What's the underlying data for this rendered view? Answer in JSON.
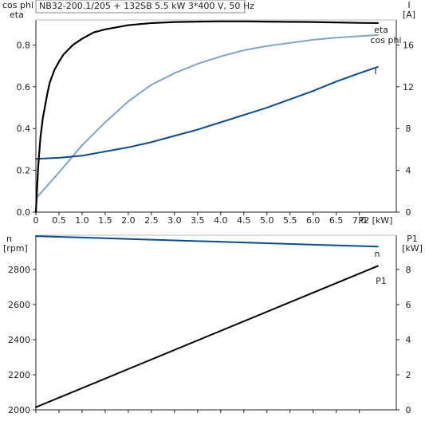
{
  "title": "NB32-200.1/205 + 132SB   5.5 kW   3*400 V, 50 Hz",
  "colors": {
    "eta": "#000000",
    "cos_phi": "#7fa4c6",
    "current": "#0e4a85",
    "speed": "#0e4a85",
    "p1": "#000000",
    "axis": "#222222"
  },
  "chart_data": [
    {
      "type": "line",
      "x_label": "P2 [kW]",
      "x_ticks": [
        "0",
        "0.5",
        "1.0",
        "1.5",
        "2.0",
        "2.5",
        "3.0",
        "3.5",
        "4.0",
        "4.5",
        "5.0",
        "5.5",
        "6.0",
        "6.5",
        "7.0"
      ],
      "xlim": [
        0,
        7.8
      ],
      "y_left_label_1": "cos phi",
      "y_left_label_2": "eta",
      "y_left_ticks": [
        "0.0",
        "0.2",
        "0.4",
        "0.6",
        "0.8"
      ],
      "y_left_lim": [
        0,
        0.92
      ],
      "y_right_label_1": "I",
      "y_right_label_2": "[A]",
      "y_right_ticks": [
        "0",
        "4",
        "8",
        "12",
        "16"
      ],
      "y_right_lim": [
        0,
        18.4
      ],
      "grid": false,
      "series": [
        {
          "name": "eta",
          "axis": "left",
          "x": [
            0,
            0.05,
            0.1,
            0.15,
            0.2,
            0.25,
            0.3,
            0.4,
            0.5,
            0.6,
            0.8,
            1.0,
            1.25,
            1.5,
            2.0,
            2.5,
            3.0,
            3.5,
            4.0,
            4.5,
            5.0,
            5.5,
            6.0,
            6.5,
            7.0,
            7.4
          ],
          "y": [
            0,
            0.22,
            0.36,
            0.45,
            0.51,
            0.57,
            0.62,
            0.68,
            0.72,
            0.755,
            0.8,
            0.83,
            0.86,
            0.875,
            0.895,
            0.905,
            0.91,
            0.912,
            0.913,
            0.913,
            0.912,
            0.911,
            0.91,
            0.908,
            0.906,
            0.905
          ]
        },
        {
          "name": "cos phi",
          "axis": "left",
          "x": [
            0,
            0.5,
            1.0,
            1.5,
            2.0,
            2.5,
            3.0,
            3.5,
            4.0,
            4.5,
            5.0,
            5.5,
            6.0,
            6.5,
            7.0,
            7.4
          ],
          "y": [
            0.065,
            0.19,
            0.32,
            0.43,
            0.53,
            0.61,
            0.665,
            0.71,
            0.745,
            0.775,
            0.795,
            0.81,
            0.825,
            0.835,
            0.842,
            0.848
          ]
        },
        {
          "name": "I",
          "axis": "right",
          "x": [
            0,
            0.5,
            1.0,
            1.5,
            2.0,
            2.5,
            3.0,
            3.5,
            4.0,
            4.5,
            5.0,
            5.5,
            6.0,
            6.5,
            7.0,
            7.4
          ],
          "y": [
            5.1,
            5.2,
            5.4,
            5.8,
            6.2,
            6.7,
            7.3,
            7.9,
            8.6,
            9.3,
            10.0,
            10.8,
            11.6,
            12.5,
            13.3,
            13.9
          ]
        }
      ]
    },
    {
      "type": "line",
      "x_label": "P2 [kW]",
      "xlim": [
        0,
        7.8
      ],
      "y_left_label_1": "n",
      "y_left_label_2": "[rpm]",
      "y_left_ticks": [
        "2000",
        "2200",
        "2400",
        "2600",
        "2800"
      ],
      "y_left_lim": [
        2000,
        2995
      ],
      "y_right_label_1": "P1",
      "y_right_label_2": "[kW]",
      "y_right_ticks": [
        "0",
        "2",
        "4",
        "6",
        "8"
      ],
      "y_right_lim": [
        0,
        9.95
      ],
      "grid": false,
      "series": [
        {
          "name": "n",
          "axis": "left",
          "x": [
            0,
            7.4
          ],
          "y": [
            2990,
            2930
          ]
        },
        {
          "name": "P1",
          "axis": "right",
          "x": [
            0,
            7.4
          ],
          "y": [
            0.15,
            8.2
          ]
        }
      ]
    }
  ]
}
